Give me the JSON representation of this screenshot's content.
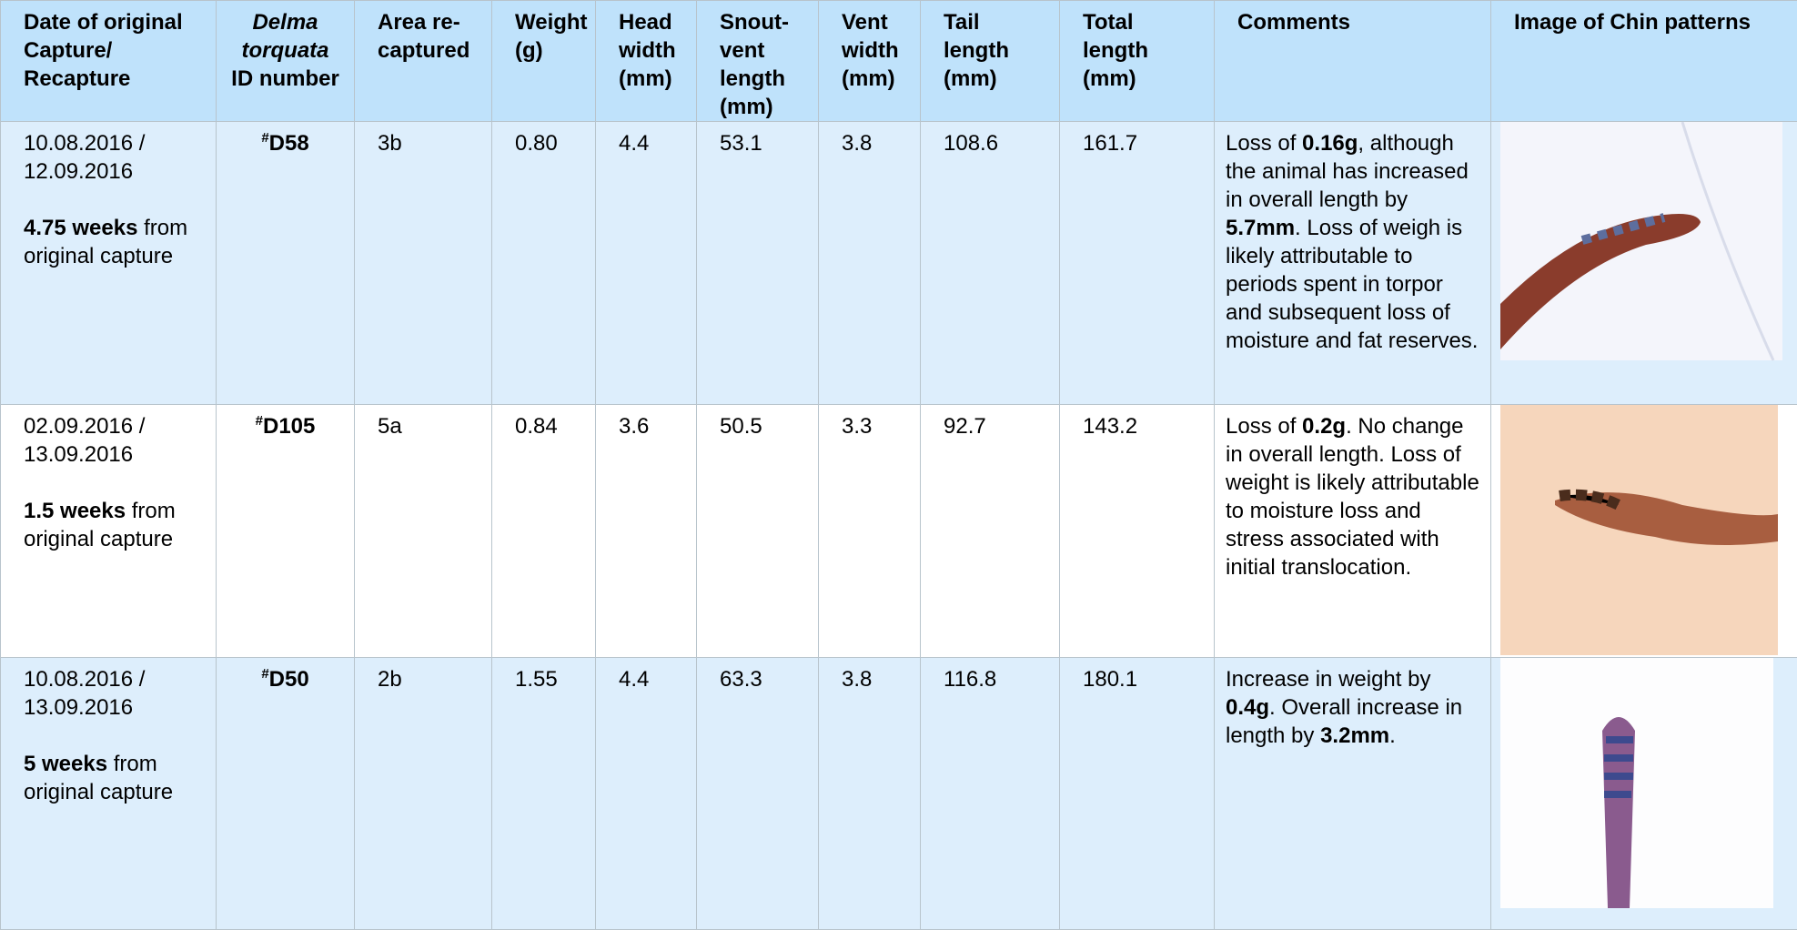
{
  "table": {
    "headers": [
      "Date of original Capture/ Recapture",
      [
        "Delma torquata",
        "ID number"
      ],
      "Area re-captured",
      "Weight (g)",
      "Head width (mm)",
      "Snout-vent length (mm)",
      "Vent width (mm)",
      "Tail length (mm)",
      "Total length (mm)",
      "Comments",
      "Image of Chin patterns"
    ],
    "rows": [
      {
        "date": "10.08.2016 / 12.09.2016",
        "duration": [
          "4.75 weeks",
          " from original capture"
        ],
        "id": [
          "#",
          "D58"
        ],
        "area": "3b",
        "weight": "0.80",
        "head": "4.4",
        "svl": "53.1",
        "vent": "3.8",
        "tail": "108.6",
        "total": "161.7",
        "comment": [
          "Loss of ",
          "0.16g",
          ", although the animal has increased in overall length by ",
          "5.7mm",
          ". Loss of weigh is likely attributable to periods spent in torpor and subsequent loss of moisture and fat reserves."
        ]
      },
      {
        "date": "02.09.2016 / 13.09.2016",
        "duration": [
          "1.5 weeks",
          " from original capture"
        ],
        "id": [
          "#",
          "D105"
        ],
        "area": "5a",
        "weight": "0.84",
        "head": "3.6",
        "svl": "50.5",
        "vent": "3.3",
        "tail": "92.7",
        "total": "143.2",
        "comment": [
          "Loss of ",
          "0.2g",
          ". No change in overall length. Loss of weight is likely attributable to moisture loss and stress associated with initial translocation."
        ]
      },
      {
        "date": "10.08.2016 / 13.09.2016",
        "duration": [
          "5 weeks",
          " from original capture"
        ],
        "id": [
          "#",
          "D50"
        ],
        "area": "2b",
        "weight": "1.55",
        "head": "4.4",
        "svl": "63.3",
        "vent": "3.8",
        "tail": "116.8",
        "total": "180.1",
        "comment": [
          "Increase in weight by ",
          "0.4g",
          ". Overall increase in length by ",
          "3.2mm",
          "."
        ]
      }
    ]
  }
}
